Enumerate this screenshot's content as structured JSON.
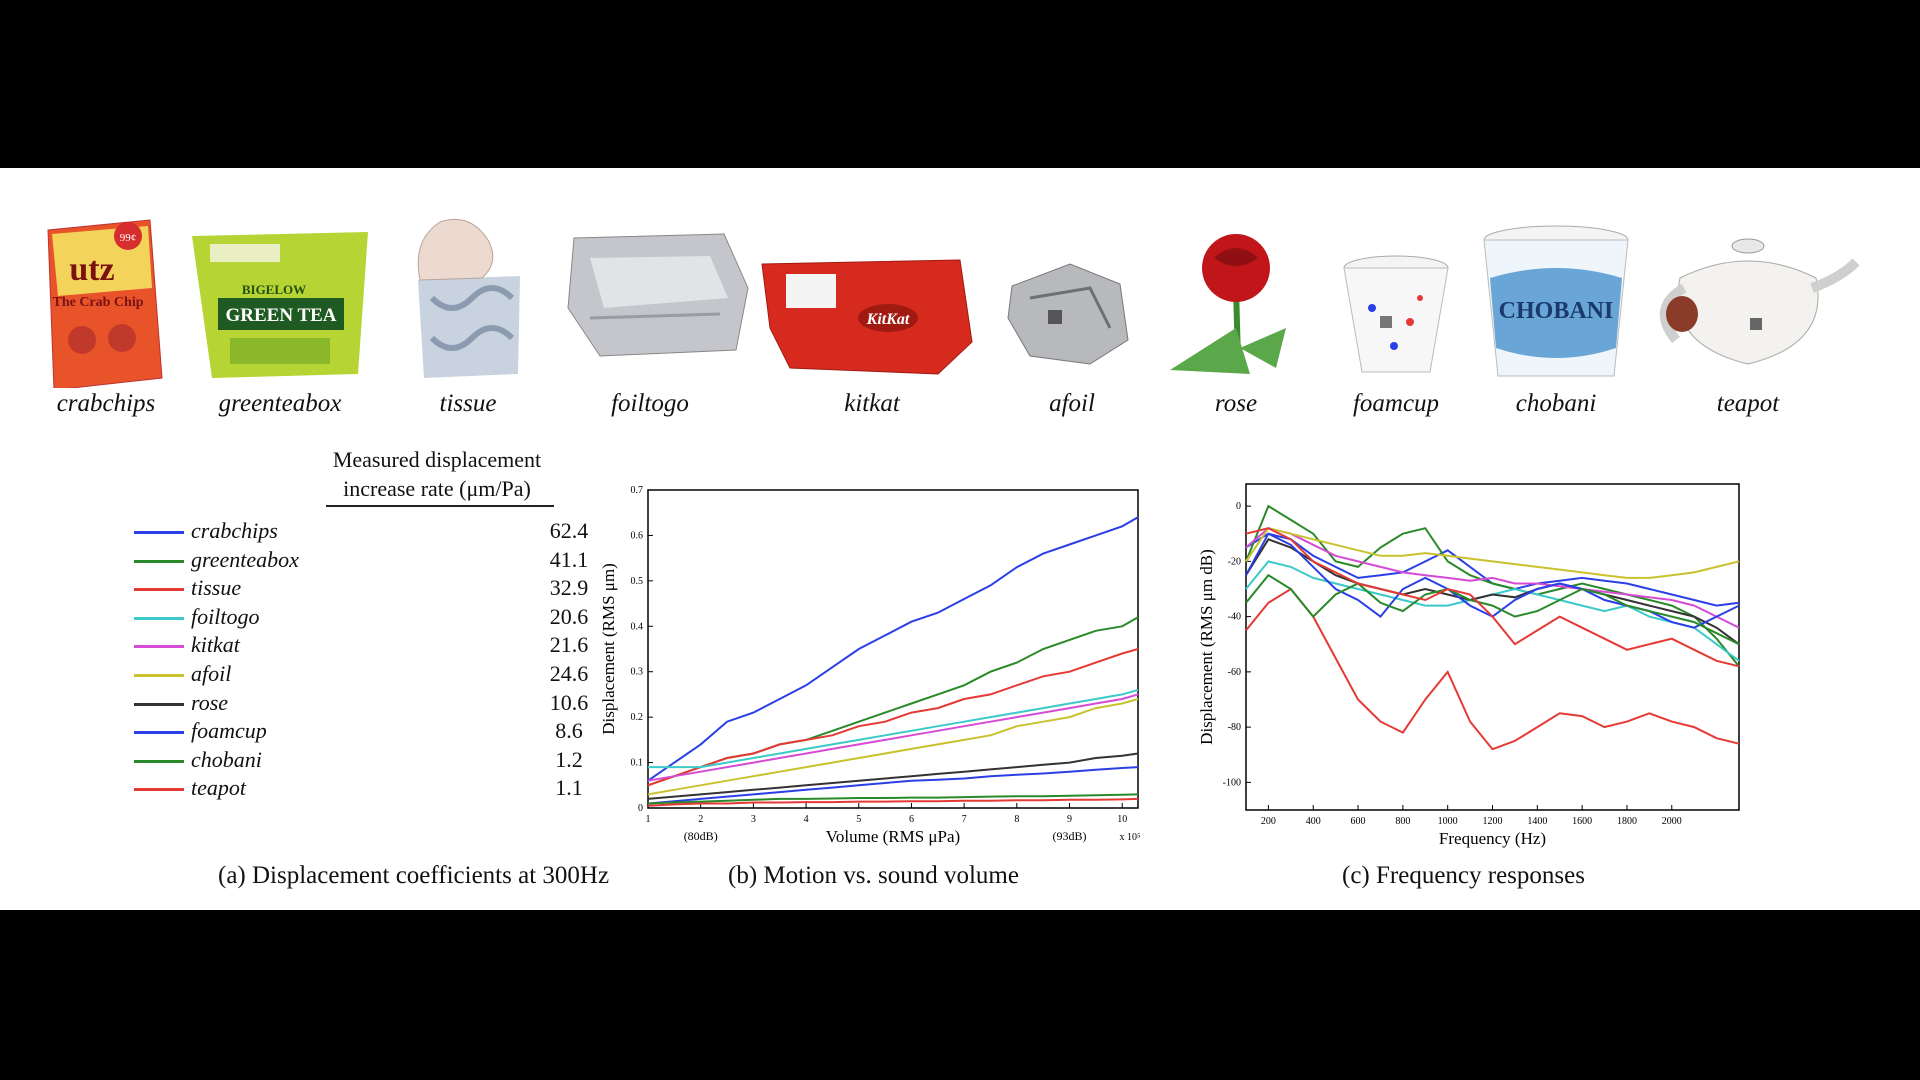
{
  "objects": [
    {
      "name": "crabchips",
      "cx": 106
    },
    {
      "name": "greenteabox",
      "cx": 280
    },
    {
      "name": "tissue",
      "cx": 468
    },
    {
      "name": "foiltogo",
      "cx": 650
    },
    {
      "name": "kitkat",
      "cx": 872
    },
    {
      "name": "afoil",
      "cx": 1072
    },
    {
      "name": "rose",
      "cx": 1236
    },
    {
      "name": "foamcup",
      "cx": 1396
    },
    {
      "name": "chobani",
      "cx": 1556
    },
    {
      "name": "teapot",
      "cx": 1748
    }
  ],
  "image_text": {
    "crabchips": [
      "utz",
      "The Crab Chip",
      "99¢"
    ],
    "greenteabox": [
      "BIGELOW",
      "GREEN TEA"
    ],
    "kitkat": [
      "KitKat"
    ],
    "chobani": [
      "CHOBANI"
    ]
  },
  "table": {
    "header_line1": "Measured displacement",
    "header_line2": "increase rate (μm/Pa)",
    "rows": [
      {
        "name": "crabchips",
        "value": "62.4",
        "color": "#2b3fe6"
      },
      {
        "name": "greenteabox",
        "value": "41.1",
        "color": "#2a8a2a"
      },
      {
        "name": "tissue",
        "value": "32.9",
        "color": "#e53935"
      },
      {
        "name": "foiltogo",
        "value": "20.6",
        "color": "#3cc9c9"
      },
      {
        "name": "kitkat",
        "value": "21.6",
        "color": "#d64bd6"
      },
      {
        "name": "afoil",
        "value": "24.6",
        "color": "#c9c22e"
      },
      {
        "name": "rose",
        "value": "10.6",
        "color": "#333333"
      },
      {
        "name": "foamcup",
        "value": "8.6",
        "color": "#2b3fe6"
      },
      {
        "name": "chobani",
        "value": "1.2",
        "color": "#2a8a2a"
      },
      {
        "name": "teapot",
        "value": "1.1",
        "color": "#e53935"
      }
    ]
  },
  "captions": {
    "a": "(a) Displacement coefficients at 300Hz",
    "b": "(b) Motion vs. sound volume",
    "c": "(c) Frequency responses"
  },
  "chart_data": [
    {
      "id": "b",
      "type": "line",
      "xlabel": "Volume (RMS μPa)",
      "ylabel": "Displacement (RMS μm)",
      "x_multiplier": "x 10⁵",
      "x_annotations": [
        {
          "x": 2,
          "text": "(80dB)"
        },
        {
          "x": 9,
          "text": "(93dB)"
        }
      ],
      "xlim": [
        1,
        10.3
      ],
      "ylim": [
        0,
        0.7
      ],
      "xticks": [
        1,
        2,
        3,
        4,
        5,
        6,
        7,
        8,
        9,
        10
      ],
      "yticks": [
        0,
        0.1,
        0.2,
        0.3,
        0.4,
        0.5,
        0.6,
        0.7
      ],
      "x": [
        1,
        1.5,
        2,
        2.5,
        3,
        3.5,
        4,
        4.5,
        5,
        5.5,
        6,
        6.5,
        7,
        7.5,
        8,
        8.5,
        9,
        9.5,
        10,
        10.3
      ],
      "series": [
        {
          "name": "crabchips",
          "color": "#2b3fe6",
          "values": [
            0.06,
            0.1,
            0.14,
            0.19,
            0.21,
            0.24,
            0.27,
            0.31,
            0.35,
            0.38,
            0.41,
            0.43,
            0.46,
            0.49,
            0.53,
            0.56,
            0.58,
            0.6,
            0.62,
            0.64
          ]
        },
        {
          "name": "greenteabox",
          "color": "#2a8a2a",
          "values": [
            0.05,
            0.07,
            0.09,
            0.11,
            0.12,
            0.14,
            0.15,
            0.17,
            0.19,
            0.21,
            0.23,
            0.25,
            0.27,
            0.3,
            0.32,
            0.35,
            0.37,
            0.39,
            0.4,
            0.42
          ]
        },
        {
          "name": "tissue",
          "color": "#e53935",
          "values": [
            0.05,
            0.07,
            0.09,
            0.11,
            0.12,
            0.14,
            0.15,
            0.16,
            0.18,
            0.19,
            0.21,
            0.22,
            0.24,
            0.25,
            0.27,
            0.29,
            0.3,
            0.32,
            0.34,
            0.35
          ]
        },
        {
          "name": "foiltogo",
          "color": "#3cc9c9",
          "values": [
            0.09,
            0.09,
            0.09,
            0.1,
            0.11,
            0.12,
            0.13,
            0.14,
            0.15,
            0.16,
            0.17,
            0.18,
            0.19,
            0.2,
            0.21,
            0.22,
            0.23,
            0.24,
            0.25,
            0.26
          ]
        },
        {
          "name": "kitkat",
          "color": "#d64bd6",
          "values": [
            0.06,
            0.07,
            0.08,
            0.09,
            0.1,
            0.11,
            0.12,
            0.13,
            0.14,
            0.15,
            0.16,
            0.17,
            0.18,
            0.19,
            0.2,
            0.21,
            0.22,
            0.23,
            0.24,
            0.25
          ]
        },
        {
          "name": "afoil",
          "color": "#c9c22e",
          "values": [
            0.03,
            0.04,
            0.05,
            0.06,
            0.07,
            0.08,
            0.09,
            0.1,
            0.11,
            0.12,
            0.13,
            0.14,
            0.15,
            0.16,
            0.18,
            0.19,
            0.2,
            0.22,
            0.23,
            0.24
          ]
        },
        {
          "name": "rose",
          "color": "#333333",
          "values": [
            0.02,
            0.025,
            0.03,
            0.035,
            0.04,
            0.045,
            0.05,
            0.055,
            0.06,
            0.065,
            0.07,
            0.075,
            0.08,
            0.085,
            0.09,
            0.095,
            0.1,
            0.11,
            0.115,
            0.12
          ]
        },
        {
          "name": "foamcup",
          "color": "#2b3fe6",
          "values": [
            0.01,
            0.015,
            0.02,
            0.025,
            0.03,
            0.035,
            0.04,
            0.045,
            0.05,
            0.055,
            0.06,
            0.062,
            0.065,
            0.07,
            0.073,
            0.076,
            0.08,
            0.084,
            0.088,
            0.09
          ]
        },
        {
          "name": "chobani",
          "color": "#2a8a2a",
          "values": [
            0.01,
            0.012,
            0.014,
            0.016,
            0.018,
            0.02,
            0.02,
            0.021,
            0.022,
            0.022,
            0.023,
            0.023,
            0.024,
            0.025,
            0.026,
            0.026,
            0.027,
            0.028,
            0.029,
            0.03
          ]
        },
        {
          "name": "teapot",
          "color": "#e53935",
          "values": [
            0.005,
            0.008,
            0.01,
            0.01,
            0.012,
            0.012,
            0.013,
            0.013,
            0.014,
            0.014,
            0.015,
            0.015,
            0.016,
            0.016,
            0.017,
            0.017,
            0.018,
            0.018,
            0.019,
            0.02
          ]
        }
      ]
    },
    {
      "id": "c",
      "type": "line",
      "xlabel": "Frequency (Hz)",
      "ylabel": "Displacement (RMS μm dB)",
      "xlim": [
        100,
        2300
      ],
      "ylim": [
        -110,
        8
      ],
      "xticks": [
        200,
        400,
        600,
        800,
        1000,
        1200,
        1400,
        1600,
        1800,
        2000
      ],
      "yticks": [
        0,
        -20,
        -40,
        -60,
        -80,
        -100
      ],
      "x": [
        100,
        200,
        300,
        400,
        500,
        600,
        700,
        800,
        900,
        1000,
        1100,
        1200,
        1300,
        1400,
        1500,
        1600,
        1700,
        1800,
        1900,
        2000,
        2100,
        2200,
        2300
      ],
      "series": [
        {
          "name": "crabchips",
          "color": "#2b3fe6",
          "values": [
            -15,
            -10,
            -12,
            -18,
            -22,
            -26,
            -25,
            -24,
            -20,
            -16,
            -22,
            -28,
            -30,
            -28,
            -27,
            -26,
            -27,
            -28,
            -30,
            -32,
            -34,
            -36,
            -35
          ]
        },
        {
          "name": "greenteabox",
          "color": "#2a8a2a",
          "values": [
            -20,
            0,
            -5,
            -10,
            -20,
            -22,
            -15,
            -10,
            -8,
            -20,
            -25,
            -28,
            -30,
            -32,
            -30,
            -28,
            -30,
            -32,
            -34,
            -36,
            -40,
            -48,
            -58
          ]
        },
        {
          "name": "tissue",
          "color": "#e53935",
          "values": [
            -45,
            -35,
            -30,
            -40,
            -55,
            -70,
            -78,
            -82,
            -70,
            -60,
            -78,
            -88,
            -85,
            -80,
            -75,
            -76,
            -80,
            -78,
            -75,
            -78,
            -80,
            -84,
            -86
          ]
        },
        {
          "name": "foiltogo",
          "color": "#3cc9c9",
          "values": [
            -30,
            -20,
            -22,
            -26,
            -28,
            -30,
            -32,
            -34,
            -36,
            -36,
            -34,
            -32,
            -30,
            -32,
            -34,
            -36,
            -38,
            -36,
            -40,
            -42,
            -44,
            -50,
            -56
          ]
        },
        {
          "name": "kitkat",
          "color": "#d64bd6",
          "values": [
            -15,
            -8,
            -10,
            -14,
            -18,
            -20,
            -22,
            -24,
            -25,
            -26,
            -27,
            -26,
            -28,
            -28,
            -29,
            -30,
            -31,
            -32,
            -33,
            -34,
            -36,
            -40,
            -44
          ]
        },
        {
          "name": "afoil",
          "color": "#c9c22e",
          "values": [
            -20,
            -8,
            -10,
            -12,
            -14,
            -16,
            -18,
            -18,
            -17,
            -18,
            -19,
            -20,
            -21,
            -22,
            -23,
            -24,
            -25,
            -26,
            -26,
            -25,
            -24,
            -22,
            -20
          ]
        },
        {
          "name": "rose",
          "color": "#333333",
          "values": [
            -25,
            -12,
            -15,
            -20,
            -25,
            -28,
            -30,
            -32,
            -30,
            -32,
            -34,
            -32,
            -33,
            -30,
            -28,
            -30,
            -32,
            -34,
            -36,
            -38,
            -40,
            -44,
            -50
          ]
        },
        {
          "name": "foamcup",
          "color": "#2b3fe6",
          "values": [
            -25,
            -10,
            -14,
            -22,
            -30,
            -34,
            -40,
            -30,
            -26,
            -30,
            -36,
            -40,
            -34,
            -30,
            -28,
            -30,
            -34,
            -36,
            -38,
            -42,
            -44,
            -40,
            -36
          ]
        },
        {
          "name": "chobani",
          "color": "#2a8a2a",
          "values": [
            -35,
            -25,
            -30,
            -40,
            -32,
            -28,
            -35,
            -38,
            -32,
            -30,
            -34,
            -36,
            -40,
            -38,
            -34,
            -30,
            -32,
            -36,
            -38,
            -40,
            -42,
            -46,
            -50
          ]
        },
        {
          "name": "teapot",
          "color": "#e53935",
          "values": [
            -10,
            -8,
            -12,
            -20,
            -24,
            -28,
            -30,
            -32,
            -34,
            -30,
            -32,
            -40,
            -50,
            -45,
            -40,
            -44,
            -48,
            -52,
            -50,
            -48,
            -52,
            -56,
            -58
          ]
        }
      ]
    }
  ]
}
